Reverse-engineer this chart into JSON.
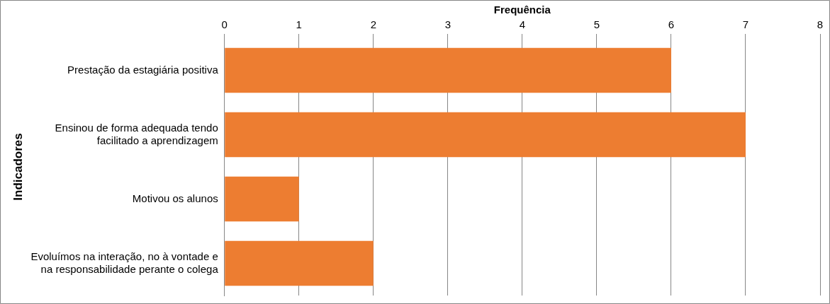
{
  "chart_data": {
    "type": "bar",
    "orientation": "horizontal",
    "xlabel": "Frequência",
    "ylabel": "Indicadores",
    "categories": [
      "Prestação da estagiária positiva",
      "Ensinou de forma adequada tendo facilitado a aprendizagem",
      "Motivou os alunos",
      "Evoluímos na interação, no à vontade e na responsabilidade perante o colega"
    ],
    "values": [
      6,
      7,
      1,
      2
    ],
    "color": "#ed7d31",
    "xlim": [
      0,
      8
    ],
    "xticks": [
      0,
      1,
      2,
      3,
      4,
      5,
      6,
      7,
      8
    ],
    "grid": "x"
  }
}
